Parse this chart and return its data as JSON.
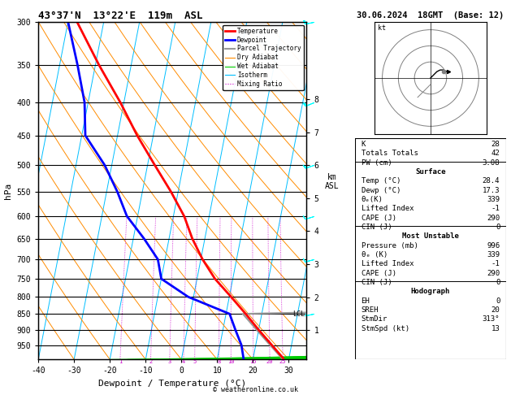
{
  "title_left": "43°37'N  13°22'E  119m  ASL",
  "title_right": "30.06.2024  18GMT  (Base: 12)",
  "xlabel": "Dewpoint / Temperature (°C)",
  "ylabel_left": "hPa",
  "pressure_ticks": [
    300,
    350,
    400,
    450,
    500,
    550,
    600,
    650,
    700,
    750,
    800,
    850,
    900,
    950
  ],
  "temp_ticks": [
    -40,
    -30,
    -20,
    -10,
    0,
    10,
    20,
    30
  ],
  "isotherm_color": "#00bfff",
  "dry_adiabat_color": "#ff8c00",
  "wet_adiabat_color": "#00cc00",
  "mixing_ratio_color": "#cc00cc",
  "temp_profile_color": "#ff0000",
  "dewp_profile_color": "#0000ff",
  "parcel_color": "#999999",
  "stats": {
    "K": 28,
    "Totals Totals": 42,
    "PW (cm)": 3.08,
    "Surface_Temp": 28.4,
    "Surface_Dewp": 17.3,
    "Surface_theta_e": 339,
    "Surface_LI": -1,
    "Surface_CAPE": 290,
    "Surface_CIN": 0,
    "MU_Pressure": 996,
    "MU_theta_e": 339,
    "MU_LI": -1,
    "MU_CAPE": 290,
    "MU_CIN": 0,
    "EH": 0,
    "SREH": 20,
    "StmDir": 313,
    "StmSpd": 13
  },
  "legend_items": [
    {
      "label": "Temperature",
      "color": "#ff0000",
      "lw": 2,
      "ls": "-"
    },
    {
      "label": "Dewpoint",
      "color": "#0000ff",
      "lw": 2,
      "ls": "-"
    },
    {
      "label": "Parcel Trajectory",
      "color": "#999999",
      "lw": 1.5,
      "ls": "-"
    },
    {
      "label": "Dry Adiabat",
      "color": "#ff8c00",
      "lw": 0.8,
      "ls": "-"
    },
    {
      "label": "Wet Adiabat",
      "color": "#00cc00",
      "lw": 0.8,
      "ls": "-"
    },
    {
      "label": "Isotherm",
      "color": "#00bfff",
      "lw": 0.8,
      "ls": "-"
    },
    {
      "label": "Mixing Ratio",
      "color": "#cc00cc",
      "lw": 0.8,
      "ls": ":"
    }
  ],
  "T_sounding_p": [
    996,
    950,
    900,
    850,
    800,
    750,
    700,
    650,
    600,
    550,
    500,
    450,
    400,
    350,
    300
  ],
  "T_sounding_T": [
    28.4,
    24.5,
    20.0,
    15.5,
    10.5,
    5.0,
    0.5,
    -3.5,
    -7.0,
    -12.0,
    -18.0,
    -24.5,
    -31.0,
    -39.0,
    -47.5
  ],
  "D_sounding_T": [
    17.3,
    16.0,
    13.5,
    11.0,
    -1.5,
    -10.0,
    -12.0,
    -17.0,
    -23.0,
    -27.0,
    -32.0,
    -39.0,
    -41.0,
    -45.0,
    -50.0
  ],
  "km_levels": [
    1,
    2,
    3,
    4,
    5,
    6,
    7,
    8
  ],
  "mixing_ratios": [
    1,
    2,
    3,
    4,
    5,
    8,
    10,
    15,
    20,
    25
  ],
  "LCL_p": 850,
  "pmin": 300,
  "pmax": 1000,
  "T_min": -40,
  "T_max": 35,
  "skew": 35
}
